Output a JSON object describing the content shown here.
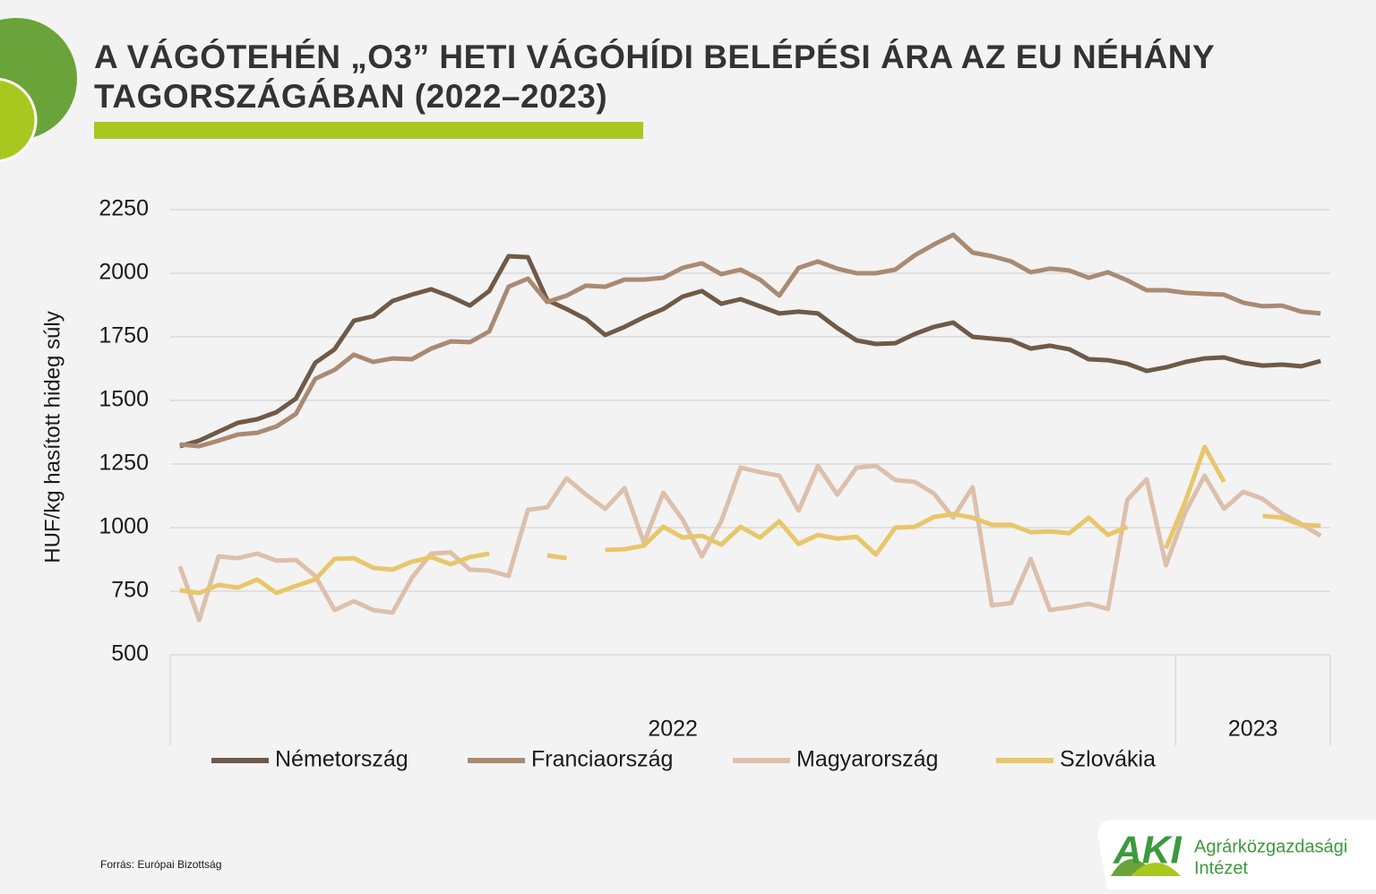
{
  "chart_data": {
    "type": "line",
    "title": [
      "A VÁGÓTEHÉN „O3” HETI VÁGÓHÍDI BELÉPÉSI ÁRA AZ EU NÉHÁNY",
      "TAGORSZÁGÁBAN (2022–2023)"
    ],
    "y_label": "HUF/kg hasított hideg súly",
    "source": "Forrás: Európai Bizottság",
    "logo": {
      "mark": "AKI",
      "name": [
        "Agrárközgazdasági",
        "Intézet"
      ]
    },
    "categories": [
      null,
      null,
      null,
      null,
      null,
      null,
      null,
      null,
      null,
      null,
      null,
      null,
      null,
      null,
      null,
      null,
      null,
      null,
      null,
      null,
      null,
      null,
      null,
      null,
      null,
      null,
      null,
      null,
      null,
      null,
      null,
      null,
      null,
      null,
      null,
      null,
      null,
      null,
      null,
      null,
      null,
      null,
      null,
      null,
      null,
      null,
      null,
      null,
      null,
      null,
      null,
      null,
      null,
      null,
      null,
      null,
      null,
      null,
      null,
      null
    ],
    "groups": [
      {
        "label": "2022",
        "span": 52
      },
      {
        "label": "2023",
        "span": 8
      }
    ],
    "ylim": [
      500,
      2250
    ],
    "yticks": [
      500,
      750,
      1000,
      1250,
      1500,
      1750,
      2000,
      2250
    ],
    "grid": true,
    "series": [
      {
        "name": "Németország",
        "color": "#6f5a48",
        "values": [
          1320,
          1342,
          1377,
          1412,
          1426,
          1454,
          1507,
          1648,
          1701,
          1813,
          1831,
          1891,
          1916,
          1937,
          1908,
          1873,
          1930,
          2067,
          2063,
          1894,
          1859,
          1820,
          1757,
          1789,
          1827,
          1859,
          1908,
          1930,
          1880,
          1898,
          1870,
          1842,
          1849,
          1842,
          1785,
          1736,
          1722,
          1725,
          1761,
          1789,
          1806,
          1750,
          1743,
          1736,
          1704,
          1715,
          1701,
          1662,
          1658,
          1644,
          1616,
          1630,
          1651,
          1665,
          1669,
          1648,
          1637,
          1641,
          1634,
          1655
        ]
      },
      {
        "name": "Franciaország",
        "color": "#a98a73",
        "values": [
          1327,
          1320,
          1342,
          1366,
          1373,
          1398,
          1447,
          1585,
          1620,
          1680,
          1651,
          1665,
          1662,
          1704,
          1732,
          1729,
          1771,
          1947,
          1979,
          1887,
          1912,
          1951,
          1947,
          1975,
          1975,
          1982,
          2021,
          2039,
          1996,
          2014,
          1975,
          1912,
          2021,
          2046,
          2018,
          2000,
          2000,
          2014,
          2070,
          2113,
          2151,
          2081,
          2067,
          2046,
          2004,
          2018,
          2011,
          1982,
          2004,
          1972,
          1933,
          1933,
          1923,
          1919,
          1916,
          1884,
          1870,
          1873,
          1849,
          1842
        ]
      },
      {
        "name": "Magyarország",
        "color": "#dcc0ab",
        "values": [
          848,
          637,
          887,
          880,
          898,
          870,
          873,
          810,
          676,
          711,
          676,
          666,
          803,
          898,
          902,
          835,
          831,
          810,
          1070,
          1080,
          1194,
          1130,
          1074,
          1155,
          940,
          1137,
          1032,
          887,
          1025,
          1236,
          1218,
          1204,
          1067,
          1243,
          1130,
          1236,
          1243,
          1187,
          1180,
          1134,
          1039,
          1159,
          694,
          704,
          877,
          676,
          687,
          701,
          680,
          1109,
          1190,
          852,
          1060,
          1204,
          1074,
          1141,
          1113,
          1056,
          1014,
          968
        ]
      },
      {
        "name": "Szlovákia",
        "color": "#e8c66a",
        "values": [
          754,
          743,
          775,
          764,
          796,
          743,
          771,
          796,
          877,
          880,
          842,
          835,
          866,
          884,
          856,
          884,
          898,
          null,
          null,
          891,
          880,
          null,
          912,
          915,
          929,
          1003,
          961,
          968,
          933,
          1003,
          961,
          1025,
          936,
          971,
          957,
          964,
          894,
          1000,
          1003,
          1042,
          1053,
          1039,
          1011,
          1011,
          982,
          985,
          978,
          1039,
          971,
          1003,
          null,
          919,
          1102,
          1317,
          1180,
          null,
          1046,
          1039,
          1011,
          1007
        ]
      }
    ]
  }
}
